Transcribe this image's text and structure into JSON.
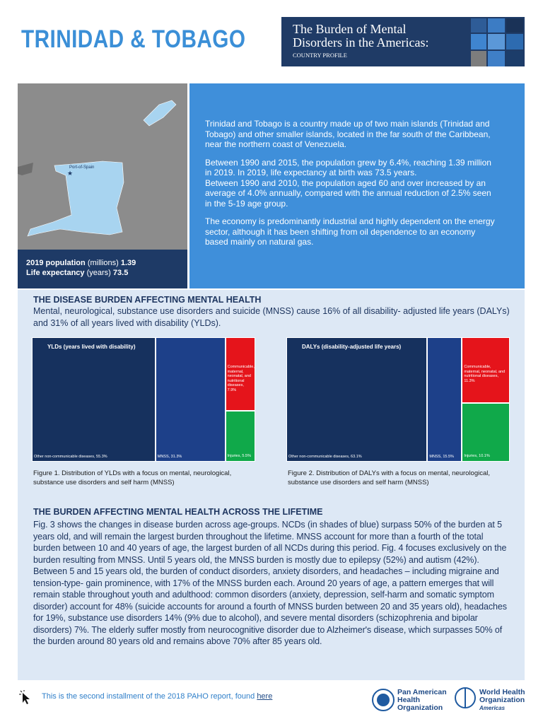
{
  "header": {
    "country": "TRINIDAD & TOBAGO",
    "title_lines": [
      "The Burden of Mental",
      "Disorders in the Americas:"
    ],
    "subtitle": "COUNTRY PROFILE"
  },
  "map": {
    "city": "Port-of-Spain"
  },
  "stats": [
    {
      "label": "2019 population",
      "unit": "(millions)",
      "value": 1.39
    },
    {
      "label": "Life expectancy",
      "unit": "(years)",
      "value": 73.5
    }
  ],
  "intro": [
    "Trinidad and Tobago is a country made up of two main islands (Trinidad and Tobago) and other smaller islands, located in the far south of the Caribbean, near the northern coast of Venezuela.",
    "Between 1990 and 2015, the population grew by 6.4%, reaching 1.39 million in 2019. In 2019, life expectancy at birth was 73.5 years.",
    "Between 1990 and 2010, the population aged 60 and over increased by an average of 4.0% annually, compared with the annual reduction of 2.5% seen in the 5-19 age group.",
    "The economy is predominantly industrial and highly dependent on the energy sector, although it has been shifting from oil dependence to an economy based mainly on natural gas."
  ],
  "burden": {
    "heading": "THE DISEASE BURDEN AFFECTING MENTAL HEALTH",
    "text": "Mental, neurological, substance use disorders and suicide (MNSS) cause 16% of all disability- adjusted life years (DALYs) and 31% of all years lived with disability (YLDs)."
  },
  "figures": [
    {
      "chart_title": "YLDs (years lived with disability)",
      "segments": [
        {
          "label": "Other non-communicable diseases, 55.3%",
          "value": 55.3,
          "color": "#16315e"
        },
        {
          "label": "MNSS, 31.3%",
          "value": 31.3,
          "color": "#1d4089"
        },
        {
          "label": "Communicable, maternal, neonatal, and nutritional diseases, 7.9%",
          "value": 7.9,
          "color": "#e5141b"
        },
        {
          "label": "Injuries, 5.5%",
          "value": 5.5,
          "color": "#10a94a"
        }
      ],
      "caption": "Figure 1. Distribution of YLDs with a focus on mental, neurological, substance use disorders and self harm (MNSS)"
    },
    {
      "chart_title": "DALYs (disability-adjusted life years)",
      "segments": [
        {
          "label": "Other non-communicable diseases, 63.1%",
          "value": 63.1,
          "color": "#16315e"
        },
        {
          "label": "MNSS, 15.5%",
          "value": 15.5,
          "color": "#1d4089"
        },
        {
          "label": "Communicable, maternal, neonatal, and nutritional diseases, 11.3%",
          "value": 11.3,
          "color": "#e5141b"
        },
        {
          "label": "Injuries, 10.1%",
          "value": 10.1,
          "color": "#10a94a"
        }
      ],
      "caption": "Figure 2. Distribution of DALYs with a focus on mental, neurological, substance use disorders and self harm (MNSS)"
    }
  ],
  "lifetime": {
    "heading": "THE BURDEN AFFECTING MENTAL HEALTH ACROSS THE LIFETIME",
    "text": "Fig. 3 shows the changes in disease burden across age-groups. NCDs (in shades of blue) surpass 50% of the burden at 5 years old, and will remain the largest burden throughout the lifetime. MNSS account for more than a fourth of the total burden between 10 and 40 years of age, the largest burden of all NCDs during this period. Fig. 4 focuses exclusively on the burden resulting from MNSS. Until 5 years old, the MNSS burden is mostly due to epilepsy (52%) and autism (42%). Between 5 and 15 years old, the burden of conduct disorders, anxiety disorders, and headaches – including migraine and tension-type- gain prominence, with 17% of the MNSS burden each. Around 20 years of age, a pattern emerges that will remain stable throughout youth and adulthood: common disorders (anxiety, depression, self-harm and somatic symptom disorder) account for 48% (suicide accounts for around a fourth of MNSS burden between 20 and 35 years old), headaches for 19%, substance use disorders 14% (9% due to alcohol), and severe mental disorders (schizophrenia and bipolar disorders) 7%. The elderly suffer mostly from neurocognitive disorder due to Alzheimer's disease, which surpasses 50% of the burden around 80 years old and remains above 70% after 85 years old."
  },
  "footer": {
    "note": "This is the second installment of the 2018 PAHO report, found",
    "link": "here"
  },
  "logos": {
    "paho": [
      "Pan American",
      "Health",
      "Organization"
    ],
    "who": [
      "World Health",
      "Organization"
    ],
    "region": "Americas"
  }
}
